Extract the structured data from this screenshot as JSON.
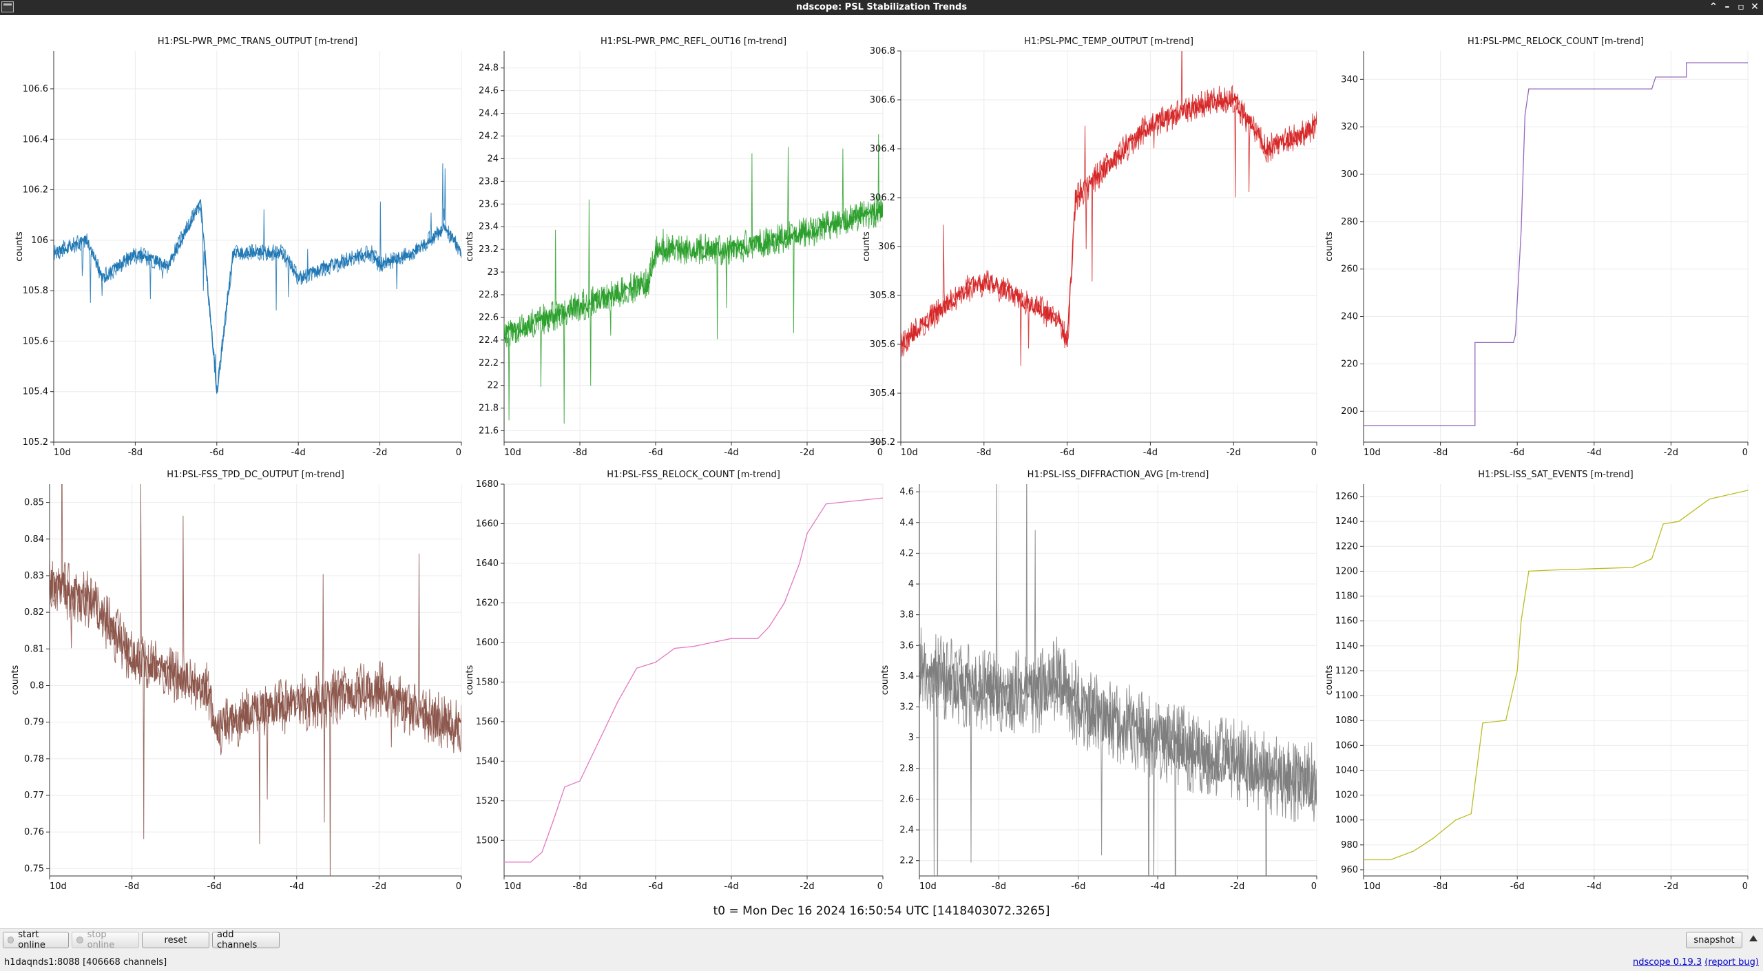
{
  "window": {
    "title": "ndscope: PSL Stabilization Trends",
    "controls": [
      "chevron-up-icon",
      "minimize-icon",
      "maximize-icon",
      "close-icon"
    ]
  },
  "plots": [
    {
      "id": "p0",
      "title": "H1:PSL-PWR_PMC_TRANS_OUTPUT [m-trend]",
      "ylabel": "counts",
      "color": "#1f77b4",
      "ylim": [
        105.2,
        106.75
      ],
      "yticks": [
        "106.6",
        "106.4",
        "106.2",
        "106",
        "105.8",
        "105.6",
        "105.4",
        "105.2"
      ],
      "xticks": [
        "10d",
        "-8d",
        "-6d",
        "-4d",
        "-2d",
        "0"
      ]
    },
    {
      "id": "p1",
      "title": "H1:PSL-PWR_PMC_REFL_OUT16 [m-trend]",
      "ylabel": "counts",
      "color": "#2ca02c",
      "ylim": [
        21.5,
        24.95
      ],
      "yticks": [
        "24.8",
        "24.6",
        "24.4",
        "24.2",
        "24",
        "23.8",
        "23.6",
        "23.4",
        "23.2",
        "23",
        "22.8",
        "22.6",
        "22.4",
        "22.2",
        "22",
        "21.8",
        "21.6"
      ],
      "xticks": [
        "10d",
        "-8d",
        "-6d",
        "-4d",
        "-2d",
        "0"
      ]
    },
    {
      "id": "p2",
      "title": "H1:PSL-PMC_TEMP_OUTPUT [m-trend]",
      "ylabel": "counts",
      "color": "#d62728",
      "ylim": [
        305.2,
        306.8
      ],
      "yticks": [
        "306.8",
        "306.6",
        "306.4",
        "306.2",
        "306",
        "305.8",
        "305.6",
        "305.4",
        "305.2"
      ],
      "xticks": [
        "10d",
        "-8d",
        "-6d",
        "-4d",
        "-2d",
        "0"
      ]
    },
    {
      "id": "p3",
      "title": "H1:PSL-PMC_RELOCK_COUNT [m-trend]",
      "ylabel": "counts",
      "color": "#9467bd",
      "ylim": [
        187,
        352
      ],
      "yticks": [
        "340",
        "320",
        "300",
        "280",
        "260",
        "240",
        "220",
        "200"
      ],
      "xticks": [
        "10d",
        "-8d",
        "-6d",
        "-4d",
        "-2d",
        "0"
      ]
    },
    {
      "id": "p4",
      "title": "H1:PSL-FSS_TPD_DC_OUTPUT [m-trend]",
      "ylabel": "counts",
      "color": "#8c564b",
      "ylim": [
        0.748,
        0.855
      ],
      "yticks": [
        "0.85",
        "0.84",
        "0.83",
        "0.82",
        "0.81",
        "0.8",
        "0.79",
        "0.78",
        "0.77",
        "0.76",
        "0.75"
      ],
      "xticks": [
        "10d",
        "-8d",
        "-6d",
        "-4d",
        "-2d",
        "0"
      ]
    },
    {
      "id": "p5",
      "title": "H1:PSL-FSS_RELOCK_COUNT [m-trend]",
      "ylabel": "counts",
      "color": "#e377c2",
      "ylim": [
        1482,
        1680
      ],
      "yticks": [
        "1680",
        "1660",
        "1640",
        "1620",
        "1600",
        "1580",
        "1560",
        "1540",
        "1520",
        "1500"
      ],
      "xticks": [
        "10d",
        "-8d",
        "-6d",
        "-4d",
        "-2d",
        "0"
      ]
    },
    {
      "id": "p6",
      "title": "H1:PSL-ISS_DIFFRACTION_AVG [m-trend]",
      "ylabel": "counts",
      "color": "#7f7f7f",
      "ylim": [
        2.1,
        4.65
      ],
      "yticks": [
        "4.6",
        "4.4",
        "4.2",
        "4",
        "3.8",
        "3.6",
        "3.4",
        "3.2",
        "3",
        "2.8",
        "2.6",
        "2.4",
        "2.2"
      ],
      "xticks": [
        "10d",
        "-8d",
        "-6d",
        "-4d",
        "-2d",
        "0"
      ]
    },
    {
      "id": "p7",
      "title": "H1:PSL-ISS_SAT_EVENTS [m-trend]",
      "ylabel": "counts",
      "color": "#bcbd22",
      "ylim": [
        955,
        1270
      ],
      "yticks": [
        "1260",
        "1240",
        "1220",
        "1200",
        "1180",
        "1160",
        "1140",
        "1120",
        "1100",
        "1080",
        "1060",
        "1040",
        "1020",
        "1000",
        "980",
        "960"
      ],
      "xticks": [
        "10d",
        "-8d",
        "-6d",
        "-4d",
        "-2d",
        "0"
      ]
    }
  ],
  "chart_data": [
    {
      "type": "line",
      "title": "H1:PSL-PWR_PMC_TRANS_OUTPUT [m-trend]",
      "ylabel": "counts",
      "xlim": [
        -10,
        0
      ],
      "ylim": [
        105.2,
        106.75
      ],
      "series": [
        {
          "x": [
            -10,
            -9.2,
            -8.8,
            -8,
            -7.2,
            -6.4,
            -6,
            -5.6,
            -4.4,
            -4,
            -3.2,
            -2.2,
            -2,
            -1.2,
            -0.4,
            0
          ],
          "y": [
            105.95,
            106.0,
            105.85,
            105.95,
            105.9,
            106.15,
            105.4,
            105.95,
            105.95,
            105.85,
            105.9,
            105.95,
            105.9,
            105.95,
            106.05,
            105.95
          ]
        }
      ]
    },
    {
      "type": "line",
      "title": "H1:PSL-PWR_PMC_REFL_OUT16 [m-trend]",
      "ylabel": "counts",
      "xlim": [
        -10,
        0
      ],
      "ylim": [
        21.5,
        24.95
      ],
      "series": [
        {
          "x": [
            -10,
            -8,
            -6.2,
            -6,
            -4,
            -2,
            0
          ],
          "y": [
            22.45,
            22.7,
            22.9,
            23.2,
            23.2,
            23.35,
            23.55
          ]
        }
      ]
    },
    {
      "type": "line",
      "title": "H1:PSL-PMC_TEMP_OUTPUT [m-trend]",
      "ylabel": "counts",
      "xlim": [
        -10,
        0
      ],
      "ylim": [
        305.2,
        306.8
      ],
      "series": [
        {
          "x": [
            -10,
            -9,
            -8.2,
            -7.8,
            -6.2,
            -6,
            -5.8,
            -4,
            -2.4,
            -2,
            -1.2,
            -0.4,
            0
          ],
          "y": [
            305.6,
            305.75,
            305.85,
            305.85,
            305.7,
            305.6,
            306.2,
            306.5,
            306.6,
            306.6,
            306.4,
            306.45,
            306.5
          ]
        }
      ]
    },
    {
      "type": "line",
      "title": "H1:PSL-PMC_RELOCK_COUNT [m-trend]",
      "ylabel": "counts",
      "xlim": [
        -10,
        0
      ],
      "ylim": [
        187,
        352
      ],
      "series": [
        {
          "x": [
            -10,
            -7.1,
            -7.1,
            -6.1,
            -6.05,
            -5.9,
            -5.8,
            -5.7,
            -2.5,
            -2.4,
            -1.6,
            -1.6,
            0
          ],
          "y": [
            194,
            194,
            229,
            229,
            232,
            276,
            325,
            336,
            336,
            341,
            341,
            347,
            347
          ]
        }
      ]
    },
    {
      "type": "line",
      "title": "H1:PSL-FSS_TPD_DC_OUTPUT [m-trend]",
      "ylabel": "counts",
      "xlim": [
        -10,
        0
      ],
      "ylim": [
        0.748,
        0.855
      ],
      "series": [
        {
          "x": [
            -10,
            -9,
            -8,
            -7,
            -6.1,
            -6,
            -5,
            -4,
            -3,
            -2,
            -1,
            0
          ],
          "y": [
            0.828,
            0.823,
            0.808,
            0.803,
            0.798,
            0.788,
            0.793,
            0.795,
            0.797,
            0.799,
            0.792,
            0.788
          ]
        }
      ]
    },
    {
      "type": "line",
      "title": "H1:PSL-FSS_RELOCK_COUNT [m-trend]",
      "ylabel": "counts",
      "xlim": [
        -10,
        0
      ],
      "ylim": [
        1482,
        1680
      ],
      "series": [
        {
          "x": [
            -10,
            -9.3,
            -9,
            -8.7,
            -8.4,
            -8,
            -7.5,
            -7,
            -6.5,
            -6,
            -5.5,
            -5,
            -4,
            -3.3,
            -3,
            -2.6,
            -2.2,
            -2,
            -1.5,
            -0.5,
            0
          ],
          "y": [
            1489,
            1489,
            1494,
            1510,
            1527,
            1530,
            1550,
            1570,
            1587,
            1590,
            1597,
            1598,
            1602,
            1602,
            1608,
            1620,
            1640,
            1655,
            1670,
            1672,
            1673
          ]
        }
      ]
    },
    {
      "type": "line",
      "title": "H1:PSL-ISS_DIFFRACTION_AVG [m-trend]",
      "ylabel": "counts",
      "xlim": [
        -10,
        0
      ],
      "ylim": [
        2.1,
        4.65
      ],
      "series": [
        {
          "x": [
            -10,
            -9,
            -8,
            -7,
            -6.5,
            -6,
            -5,
            -4,
            -3,
            -2,
            -1,
            0
          ],
          "y": [
            3.45,
            3.35,
            3.3,
            3.3,
            3.4,
            3.2,
            3.1,
            3.0,
            2.9,
            2.85,
            2.75,
            2.7
          ]
        }
      ]
    },
    {
      "type": "line",
      "title": "H1:PSL-ISS_SAT_EVENTS [m-trend]",
      "ylabel": "counts",
      "xlim": [
        -10,
        0
      ],
      "ylim": [
        955,
        1270
      ],
      "series": [
        {
          "x": [
            -10,
            -9.3,
            -8.7,
            -8.2,
            -8,
            -7.6,
            -7.2,
            -6.9,
            -6.3,
            -6,
            -5.9,
            -5.7,
            -5,
            -4,
            -3,
            -2.5,
            -2.2,
            -1.8,
            -1,
            0
          ],
          "y": [
            968,
            968,
            975,
            985,
            990,
            1000,
            1005,
            1078,
            1080,
            1120,
            1160,
            1200,
            1201,
            1202,
            1203,
            1210,
            1238,
            1240,
            1258,
            1265
          ]
        }
      ]
    }
  ],
  "footer": {
    "t0_text": "t0 = Mon Dec 16 2024 16:50:54 UTC [1418403072.3265]",
    "buttons": {
      "start_online": "start online",
      "stop_online": "stop online",
      "reset": "reset",
      "add_channels": "add channels",
      "snapshot": "snapshot"
    },
    "status": "h1daqnds1:8088  [406668 channels]",
    "version_link": "ndscope 0.19.3",
    "report_bug": "(report bug)"
  }
}
